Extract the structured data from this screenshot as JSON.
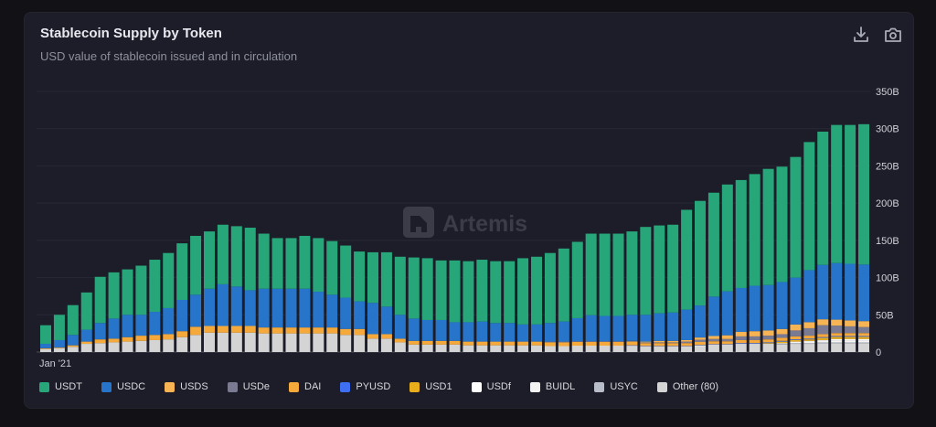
{
  "header": {
    "title": "Stablecoin Supply by Token",
    "subtitle": "USD value of stablecoin issued and in circulation",
    "icons": [
      "download-icon",
      "camera-icon"
    ]
  },
  "watermark": "Artemis",
  "chart_data": {
    "type": "bar",
    "stacked": true,
    "title": "Stablecoin Supply by Token",
    "subtitle": "USD value of stablecoin issued and in circulation",
    "xlabel": "",
    "ylabel": "",
    "x_start_label": "Jan '21",
    "x_frequency": "monthly",
    "ylim": [
      0,
      350
    ],
    "y_ticks": [
      0,
      50,
      100,
      150,
      200,
      250,
      300,
      350
    ],
    "y_tick_labels": [
      "0",
      "50B",
      "100B",
      "150B",
      "200B",
      "250B",
      "300B",
      "350B"
    ],
    "grid": true,
    "legend_position": "bottom",
    "series": [
      {
        "name": "USDT",
        "color": "#27a67a",
        "values": [
          25,
          34,
          40,
          50,
          62,
          62,
          61,
          66,
          70,
          74,
          76,
          79,
          77,
          80,
          81,
          84,
          74,
          68,
          68,
          71,
          72,
          72,
          70,
          67,
          68,
          73,
          78,
          82,
          83,
          80,
          83,
          82,
          83,
          83,
          83,
          89,
          91,
          94,
          98,
          102.5,
          109.5,
          110.5,
          110.5,
          112,
          118,
          118,
          118,
          134,
          140.5,
          139.5,
          143.5,
          145,
          150,
          156,
          155,
          162,
          172,
          179,
          185.5,
          186.5,
          188.5
        ]
      },
      {
        "name": "USDC",
        "color": "#2775ca",
        "values": [
          6,
          10,
          14,
          16,
          22,
          27,
          30,
          28,
          31,
          35,
          42,
          43,
          50,
          56,
          53,
          48,
          52,
          52,
          52,
          52,
          48,
          44,
          42,
          37,
          42,
          37,
          32,
          30,
          28,
          28,
          25,
          26,
          27,
          25,
          25,
          23,
          23,
          25,
          27,
          31,
          35,
          34,
          34,
          35,
          36,
          37,
          38,
          41,
          43,
          53,
          59,
          59,
          61,
          61,
          63,
          63,
          70,
          73,
          76,
          76,
          76
        ]
      },
      {
        "name": "USDS",
        "color": "#f7b455",
        "values": [
          0,
          0,
          0,
          0,
          0,
          0,
          0,
          0,
          0,
          0,
          0,
          0,
          0,
          0,
          0,
          0,
          0,
          0,
          0,
          0,
          0,
          0,
          0,
          0,
          0,
          0,
          0,
          0,
          0,
          0,
          0,
          0,
          0,
          0,
          0,
          0,
          0,
          0,
          0,
          0,
          0,
          0,
          0,
          0,
          1,
          2,
          2,
          2,
          3,
          4,
          5,
          6,
          7,
          7,
          7,
          8,
          8,
          8,
          8,
          8,
          8
        ]
      },
      {
        "name": "USDe",
        "color": "#7a7a92",
        "values": [
          0,
          0,
          0,
          0,
          0,
          0,
          0,
          0,
          0,
          0,
          0,
          0,
          0,
          0,
          0,
          0,
          0,
          0,
          0,
          0,
          0,
          0,
          0,
          0,
          0,
          0,
          0,
          0,
          0,
          0,
          0,
          0,
          0,
          0,
          0,
          0,
          0,
          1,
          1,
          1,
          1,
          1,
          1,
          1,
          1,
          1,
          1,
          2,
          3,
          3,
          3,
          5,
          5,
          5,
          5,
          8,
          10,
          12,
          10,
          9,
          8
        ]
      },
      {
        "name": "DAI",
        "color": "#f5a93a",
        "values": [
          1,
          1,
          2,
          3,
          5,
          5,
          6,
          7,
          7,
          7,
          8,
          11,
          9,
          9,
          9,
          9,
          8,
          8,
          8,
          8,
          8,
          8,
          8,
          8,
          6,
          6,
          5,
          5,
          5,
          5,
          5,
          5,
          5,
          5,
          5,
          5,
          5,
          5,
          5,
          5,
          5,
          5,
          5,
          5,
          4,
          4,
          4,
          4,
          4,
          4,
          4,
          4,
          4,
          4,
          4,
          4,
          4,
          4,
          4,
          4,
          4
        ]
      },
      {
        "name": "PYUSD",
        "color": "#3e6ff0",
        "values": [
          0,
          0,
          0,
          0,
          0,
          0,
          0,
          0,
          0,
          0,
          0,
          0,
          0,
          0,
          0,
          0,
          0,
          0,
          0,
          0,
          0,
          0,
          0,
          0,
          0,
          0,
          0,
          0,
          0,
          0,
          0,
          0,
          0,
          0,
          0,
          0,
          0,
          0,
          0,
          0,
          0,
          0,
          0,
          0.5,
          0.5,
          0.5,
          0.5,
          0.5,
          0.5,
          0.5,
          0.5,
          1,
          1,
          1,
          1,
          1,
          1,
          1,
          1,
          1,
          1
        ]
      },
      {
        "name": "USD1",
        "color": "#e8ae1c",
        "values": [
          0,
          0,
          0,
          0,
          0,
          0,
          0,
          0,
          0,
          0,
          0,
          0,
          0,
          0,
          0,
          0,
          0,
          0,
          0,
          0,
          0,
          0,
          0,
          0,
          0,
          0,
          0,
          0,
          0,
          0,
          0,
          0,
          0,
          0,
          0,
          0,
          0,
          0,
          0,
          0,
          0,
          0,
          0,
          0,
          0,
          0,
          0,
          0,
          0,
          0,
          0,
          0,
          0,
          1,
          2,
          2,
          2,
          3,
          3,
          3,
          3
        ]
      },
      {
        "name": "USDf",
        "color": "#ffffff",
        "values": [
          0,
          0,
          0,
          0,
          0,
          0,
          0,
          0,
          0,
          0,
          0,
          0,
          0,
          0,
          0,
          0,
          0,
          0,
          0,
          0,
          0,
          0,
          0,
          0,
          0,
          0,
          0,
          0,
          0,
          0,
          0,
          0,
          0,
          0,
          0,
          0,
          0,
          0,
          0,
          0,
          0,
          0,
          0,
          0,
          0,
          0,
          0,
          0,
          0,
          0,
          0,
          0,
          0,
          0,
          0,
          0,
          1,
          1,
          2,
          2,
          2
        ]
      },
      {
        "name": "BUIDL",
        "color": "#f4f4f4",
        "values": [
          0,
          0,
          0,
          0,
          0,
          0,
          0,
          0,
          0,
          0,
          0,
          0,
          0,
          0,
          0,
          0,
          0,
          0,
          0,
          0,
          0,
          0,
          0,
          0,
          0,
          0,
          0,
          0,
          0,
          0,
          0,
          0,
          0,
          0,
          0,
          0,
          0,
          0,
          0,
          0.5,
          0.5,
          0.5,
          0.5,
          0.5,
          0.5,
          0.5,
          0.5,
          0.5,
          1,
          1,
          1,
          1,
          1,
          1,
          1,
          2,
          2,
          2,
          2.5,
          2.5,
          2.5
        ]
      },
      {
        "name": "USYC",
        "color": "#b9bdc9",
        "values": [
          0,
          0,
          0,
          0,
          0,
          0,
          0,
          0,
          0,
          0,
          0,
          0,
          0,
          0,
          0,
          0,
          0,
          0,
          0,
          0,
          0,
          0,
          0,
          0,
          0,
          0,
          0,
          0,
          0,
          0,
          0,
          0,
          0,
          0,
          0,
          0,
          0,
          0,
          0,
          0,
          0,
          0,
          0,
          0,
          0,
          0,
          0,
          0,
          0,
          0,
          0,
          0,
          0,
          0,
          1,
          1,
          1,
          1,
          1,
          1,
          1
        ]
      },
      {
        "name": "Other (80)",
        "color": "#d4d4d4",
        "values": [
          4,
          5,
          7,
          11,
          12,
          13,
          14,
          15,
          16,
          17,
          20,
          23,
          26,
          26,
          26,
          26,
          25,
          25,
          25,
          25,
          25,
          25,
          23,
          23,
          18,
          18,
          13,
          10,
          10,
          10,
          10,
          9,
          9,
          9,
          9,
          9,
          9,
          8,
          8,
          8,
          8,
          8,
          8,
          8,
          7,
          7,
          7,
          7,
          8,
          9,
          9,
          10,
          10,
          10,
          10,
          11,
          11,
          12,
          12,
          12,
          12
        ]
      }
    ],
    "stack_order_bottom_to_top": [
      "Other (80)",
      "USYC",
      "BUIDL",
      "USDf",
      "USD1",
      "PYUSD",
      "DAI",
      "USDe",
      "USDS",
      "USDC",
      "USDT"
    ]
  }
}
